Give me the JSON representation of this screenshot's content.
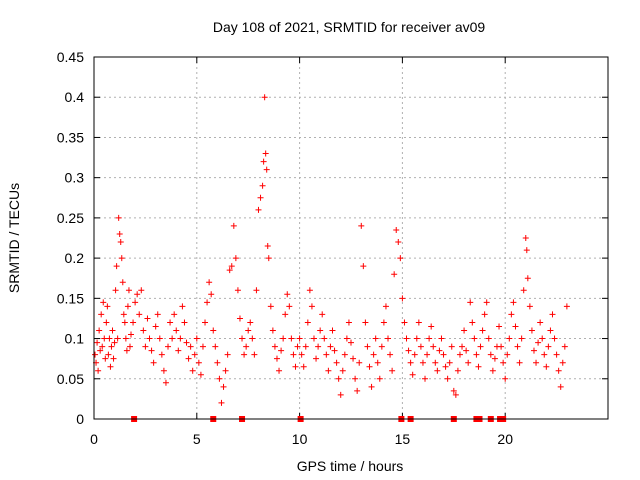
{
  "chart_data": {
    "type": "scatter",
    "title": "Day 108 of 2021, SRMTID for receiver av09",
    "xlabel": "GPS time / hours",
    "ylabel": "SRMTID / TECUs",
    "xlim": [
      0,
      25
    ],
    "ylim": [
      0,
      0.45
    ],
    "xticks": [
      {
        "v": 0,
        "label": "0"
      },
      {
        "v": 5,
        "label": "5"
      },
      {
        "v": 10,
        "label": "10"
      },
      {
        "v": 15,
        "label": "15"
      },
      {
        "v": 20,
        "label": "20"
      }
    ],
    "yticks": [
      {
        "v": 0,
        "label": "0"
      },
      {
        "v": 0.05,
        "label": "0.05"
      },
      {
        "v": 0.1,
        "label": "0.1"
      },
      {
        "v": 0.15,
        "label": "0.15"
      },
      {
        "v": 0.2,
        "label": "0.2"
      },
      {
        "v": 0.25,
        "label": "0.25"
      },
      {
        "v": 0.3,
        "label": "0.3"
      },
      {
        "v": 0.35,
        "label": "0.35"
      },
      {
        "v": 0.4,
        "label": "0.4"
      },
      {
        "v": 0.45,
        "label": "0.45"
      }
    ],
    "grid": true,
    "marker": "plus",
    "color": "#ff0000",
    "series": [
      {
        "name": "SRMTID",
        "points": [
          [
            0.05,
            0.08
          ],
          [
            0.1,
            0.07
          ],
          [
            0.15,
            0.095
          ],
          [
            0.2,
            0.06
          ],
          [
            0.25,
            0.11
          ],
          [
            0.3,
            0.085
          ],
          [
            0.35,
            0.13
          ],
          [
            0.4,
            0.09
          ],
          [
            0.45,
            0.145
          ],
          [
            0.5,
            0.1
          ],
          [
            0.55,
            0.075
          ],
          [
            0.6,
            0.12
          ],
          [
            0.65,
            0.14
          ],
          [
            0.7,
            0.08
          ],
          [
            0.75,
            0.1
          ],
          [
            0.8,
            0.065
          ],
          [
            0.85,
            0.09
          ],
          [
            0.9,
            0.11
          ],
          [
            0.95,
            0.075
          ],
          [
            1.0,
            0.095
          ],
          [
            1.05,
            0.16
          ],
          [
            1.1,
            0.19
          ],
          [
            1.15,
            0.1
          ],
          [
            1.2,
            0.25
          ],
          [
            1.25,
            0.23
          ],
          [
            1.3,
            0.22
          ],
          [
            1.35,
            0.2
          ],
          [
            1.4,
            0.17
          ],
          [
            1.45,
            0.13
          ],
          [
            1.5,
            0.12
          ],
          [
            1.55,
            0.1
          ],
          [
            1.6,
            0.085
          ],
          [
            1.65,
            0.14
          ],
          [
            1.7,
            0.16
          ],
          [
            1.75,
            0.09
          ],
          [
            1.8,
            0.105
          ],
          [
            1.9,
            0.12
          ],
          [
            2.0,
            0.145
          ],
          [
            2.1,
            0.155
          ],
          [
            2.2,
            0.13
          ],
          [
            2.3,
            0.16
          ],
          [
            2.4,
            0.11
          ],
          [
            2.5,
            0.09
          ],
          [
            2.6,
            0.125
          ],
          [
            2.7,
            0.1
          ],
          [
            2.8,
            0.085
          ],
          [
            2.9,
            0.07
          ],
          [
            3.0,
            0.115
          ],
          [
            3.1,
            0.13
          ],
          [
            3.2,
            0.1
          ],
          [
            3.3,
            0.08
          ],
          [
            3.4,
            0.06
          ],
          [
            3.5,
            0.045
          ],
          [
            3.6,
            0.09
          ],
          [
            3.7,
            0.12
          ],
          [
            3.8,
            0.1
          ],
          [
            3.9,
            0.13
          ],
          [
            4.0,
            0.11
          ],
          [
            4.1,
            0.085
          ],
          [
            4.2,
            0.1
          ],
          [
            4.3,
            0.14
          ],
          [
            4.4,
            0.12
          ],
          [
            4.5,
            0.095
          ],
          [
            4.6,
            0.075
          ],
          [
            4.7,
            0.09
          ],
          [
            4.8,
            0.06
          ],
          [
            4.9,
            0.08
          ],
          [
            5.0,
            0.1
          ],
          [
            5.1,
            0.07
          ],
          [
            5.2,
            0.055
          ],
          [
            5.3,
            0.09
          ],
          [
            5.4,
            0.12
          ],
          [
            5.5,
            0.145
          ],
          [
            5.6,
            0.17
          ],
          [
            5.7,
            0.155
          ],
          [
            5.8,
            0.11
          ],
          [
            5.9,
            0.09
          ],
          [
            6.0,
            0.07
          ],
          [
            6.1,
            0.05
          ],
          [
            6.2,
            0.02
          ],
          [
            6.3,
            0.04
          ],
          [
            6.4,
            0.06
          ],
          [
            6.5,
            0.08
          ],
          [
            6.6,
            0.185
          ],
          [
            6.7,
            0.19
          ],
          [
            6.8,
            0.24
          ],
          [
            6.9,
            0.2
          ],
          [
            7.0,
            0.16
          ],
          [
            7.1,
            0.125
          ],
          [
            7.2,
            0.1
          ],
          [
            7.3,
            0.08
          ],
          [
            7.4,
            0.09
          ],
          [
            7.5,
            0.11
          ],
          [
            7.6,
            0.12
          ],
          [
            7.7,
            0.1
          ],
          [
            7.8,
            0.08
          ],
          [
            7.9,
            0.16
          ],
          [
            8.0,
            0.26
          ],
          [
            8.1,
            0.275
          ],
          [
            8.2,
            0.29
          ],
          [
            8.25,
            0.32
          ],
          [
            8.3,
            0.4
          ],
          [
            8.35,
            0.33
          ],
          [
            8.4,
            0.31
          ],
          [
            8.45,
            0.215
          ],
          [
            8.5,
            0.2
          ],
          [
            8.6,
            0.14
          ],
          [
            8.7,
            0.11
          ],
          [
            8.8,
            0.09
          ],
          [
            8.9,
            0.075
          ],
          [
            9.0,
            0.06
          ],
          [
            9.1,
            0.085
          ],
          [
            9.2,
            0.1
          ],
          [
            9.3,
            0.13
          ],
          [
            9.4,
            0.155
          ],
          [
            9.5,
            0.14
          ],
          [
            9.6,
            0.1
          ],
          [
            9.7,
            0.08
          ],
          [
            9.8,
            0.065
          ],
          [
            9.9,
            0.09
          ],
          [
            10.0,
            0.1
          ],
          [
            10.1,
            0.08
          ],
          [
            10.2,
            0.065
          ],
          [
            10.3,
            0.09
          ],
          [
            10.4,
            0.12
          ],
          [
            10.5,
            0.16
          ],
          [
            10.6,
            0.14
          ],
          [
            10.7,
            0.1
          ],
          [
            10.8,
            0.075
          ],
          [
            10.9,
            0.09
          ],
          [
            11.0,
            0.11
          ],
          [
            11.1,
            0.13
          ],
          [
            11.2,
            0.1
          ],
          [
            11.3,
            0.08
          ],
          [
            11.4,
            0.06
          ],
          [
            11.5,
            0.09
          ],
          [
            11.6,
            0.11
          ],
          [
            11.7,
            0.085
          ],
          [
            11.8,
            0.07
          ],
          [
            11.9,
            0.05
          ],
          [
            12.0,
            0.03
          ],
          [
            12.1,
            0.06
          ],
          [
            12.2,
            0.08
          ],
          [
            12.3,
            0.1
          ],
          [
            12.4,
            0.12
          ],
          [
            12.5,
            0.095
          ],
          [
            12.6,
            0.075
          ],
          [
            12.7,
            0.05
          ],
          [
            12.8,
            0.035
          ],
          [
            12.9,
            0.07
          ],
          [
            13.0,
            0.24
          ],
          [
            13.1,
            0.19
          ],
          [
            13.2,
            0.12
          ],
          [
            13.3,
            0.09
          ],
          [
            13.4,
            0.065
          ],
          [
            13.5,
            0.04
          ],
          [
            13.6,
            0.08
          ],
          [
            13.7,
            0.1
          ],
          [
            13.8,
            0.07
          ],
          [
            13.9,
            0.05
          ],
          [
            14.0,
            0.09
          ],
          [
            14.1,
            0.12
          ],
          [
            14.2,
            0.14
          ],
          [
            14.3,
            0.1
          ],
          [
            14.4,
            0.08
          ],
          [
            14.5,
            0.06
          ],
          [
            14.6,
            0.18
          ],
          [
            14.7,
            0.235
          ],
          [
            14.8,
            0.22
          ],
          [
            14.9,
            0.2
          ],
          [
            15.0,
            0.15
          ],
          [
            15.1,
            0.12
          ],
          [
            15.2,
            0.1
          ],
          [
            15.3,
            0.085
          ],
          [
            15.4,
            0.07
          ],
          [
            15.5,
            0.055
          ],
          [
            15.6,
            0.08
          ],
          [
            15.7,
            0.1
          ],
          [
            15.8,
            0.12
          ],
          [
            15.9,
            0.09
          ],
          [
            16.0,
            0.07
          ],
          [
            16.1,
            0.05
          ],
          [
            16.2,
            0.08
          ],
          [
            16.3,
            0.1
          ],
          [
            16.4,
            0.115
          ],
          [
            16.5,
            0.09
          ],
          [
            16.6,
            0.07
          ],
          [
            16.7,
            0.06
          ],
          [
            16.8,
            0.085
          ],
          [
            16.9,
            0.1
          ],
          [
            17.0,
            0.08
          ],
          [
            17.1,
            0.065
          ],
          [
            17.2,
            0.05
          ],
          [
            17.3,
            0.07
          ],
          [
            17.4,
            0.09
          ],
          [
            17.5,
            0.035
          ],
          [
            17.6,
            0.03
          ],
          [
            17.7,
            0.06
          ],
          [
            17.8,
            0.08
          ],
          [
            17.9,
            0.09
          ],
          [
            18.0,
            0.11
          ],
          [
            18.1,
            0.085
          ],
          [
            18.2,
            0.07
          ],
          [
            18.3,
            0.145
          ],
          [
            18.4,
            0.12
          ],
          [
            18.5,
            0.1
          ],
          [
            18.6,
            0.08
          ],
          [
            18.7,
            0.065
          ],
          [
            18.8,
            0.09
          ],
          [
            18.9,
            0.11
          ],
          [
            19.0,
            0.13
          ],
          [
            19.1,
            0.145
          ],
          [
            19.2,
            0.1
          ],
          [
            19.3,
            0.08
          ],
          [
            19.4,
            0.06
          ],
          [
            19.5,
            0.075
          ],
          [
            19.6,
            0.09
          ],
          [
            19.7,
            0.115
          ],
          [
            19.8,
            0.09
          ],
          [
            19.9,
            0.07
          ],
          [
            20.0,
            0.05
          ],
          [
            20.1,
            0.08
          ],
          [
            20.2,
            0.1
          ],
          [
            20.3,
            0.13
          ],
          [
            20.4,
            0.145
          ],
          [
            20.5,
            0.115
          ],
          [
            20.6,
            0.09
          ],
          [
            20.7,
            0.07
          ],
          [
            20.8,
            0.1
          ],
          [
            20.9,
            0.16
          ],
          [
            21.0,
            0.225
          ],
          [
            21.05,
            0.21
          ],
          [
            21.1,
            0.175
          ],
          [
            21.2,
            0.14
          ],
          [
            21.3,
            0.11
          ],
          [
            21.4,
            0.085
          ],
          [
            21.5,
            0.07
          ],
          [
            21.6,
            0.095
          ],
          [
            21.7,
            0.12
          ],
          [
            21.8,
            0.1
          ],
          [
            21.9,
            0.08
          ],
          [
            22.0,
            0.065
          ],
          [
            22.1,
            0.09
          ],
          [
            22.2,
            0.11
          ],
          [
            22.3,
            0.13
          ],
          [
            22.4,
            0.1
          ],
          [
            22.5,
            0.08
          ],
          [
            22.6,
            0.06
          ],
          [
            22.7,
            0.04
          ],
          [
            22.8,
            0.07
          ],
          [
            22.9,
            0.09
          ],
          [
            23.0,
            0.14
          ]
        ]
      }
    ],
    "baseline_markers_x": [
      1.95,
      5.8,
      7.2,
      10.05,
      14.95,
      15.4,
      17.5,
      18.6,
      18.75,
      19.3,
      19.75,
      19.9
    ]
  }
}
